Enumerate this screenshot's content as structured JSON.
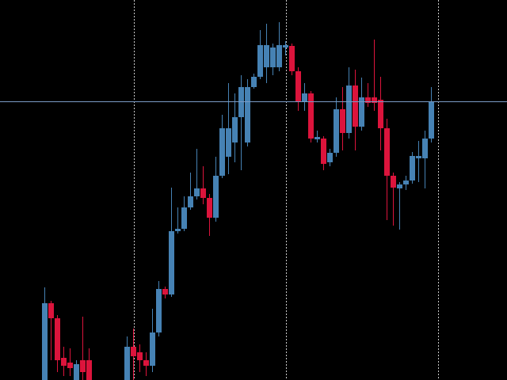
{
  "chart_data": {
    "type": "candlestick",
    "x": [
      0,
      1,
      2,
      3,
      4,
      5,
      6,
      7,
      13,
      14,
      15,
      16,
      17,
      18,
      19,
      20,
      21,
      22,
      23,
      24,
      25,
      26,
      27,
      28,
      29,
      30,
      31,
      32,
      33,
      34,
      35,
      36,
      37,
      38,
      39,
      40,
      41,
      42,
      43,
      44,
      45,
      46,
      47,
      48,
      49,
      50,
      51,
      52,
      53,
      54,
      55,
      56,
      57,
      58,
      59,
      60,
      61
    ],
    "open": [
      0,
      97,
      78,
      28,
      22,
      0,
      25,
      25,
      0,
      42,
      35,
      25,
      18,
      60,
      115,
      108,
      188,
      191,
      218,
      232,
      242,
      230,
      205,
      258,
      282,
      300,
      332,
      300,
      370,
      383,
      395,
      395,
      395,
      420,
      422,
      390,
      352,
      362,
      304,
      305,
      275,
      287,
      342,
      312,
      372,
      320,
      357,
      357,
      354,
      318,
      258,
      242,
      247,
      252,
      280,
      280,
      305
    ],
    "high": [
      117,
      100,
      82,
      42,
      40,
      25,
      80,
      40,
      55,
      65,
      45,
      35,
      90,
      125,
      118,
      243,
      218,
      232,
      262,
      292,
      270,
      235,
      282,
      335,
      375,
      362,
      385,
      380,
      387,
      442,
      450,
      425,
      452,
      428,
      425,
      395,
      375,
      365,
      315,
      308,
      292,
      357,
      370,
      395,
      392,
      382,
      375,
      430,
      383,
      330,
      262,
      250,
      258,
      288,
      302,
      315,
      370
    ],
    "low": [
      0,
      25,
      10,
      5,
      5,
      0,
      0,
      0,
      0,
      0,
      10,
      5,
      10,
      55,
      103,
      105,
      185,
      188,
      215,
      228,
      222,
      182,
      200,
      255,
      260,
      275,
      265,
      295,
      368,
      380,
      375,
      385,
      390,
      410,
      385,
      340,
      340,
      300,
      300,
      265,
      270,
      282,
      290,
      305,
      290,
      315,
      345,
      340,
      290,
      202,
      195,
      190,
      240,
      248,
      250,
      242,
      300
    ],
    "close": [
      97,
      78,
      25,
      18,
      15,
      20,
      10,
      0,
      42,
      30,
      25,
      18,
      60,
      115,
      108,
      188,
      191,
      218,
      232,
      242,
      230,
      205,
      258,
      318,
      318,
      332,
      370,
      370,
      383,
      423,
      423,
      420,
      423,
      423,
      390,
      352,
      362,
      305,
      307,
      273,
      287,
      342,
      312,
      372,
      320,
      357,
      350,
      350,
      318,
      258,
      243,
      247,
      252,
      283,
      283,
      305,
      352
    ],
    "up_color": "#4682b4",
    "down_color": "#dc143c",
    "xlim": [
      -7,
      73
    ],
    "ylim": [
      0,
      480
    ],
    "grid_x": [
      14.1,
      38.1,
      62.1
    ],
    "price_line": 352,
    "price_line_color": "#7a9cc6"
  }
}
